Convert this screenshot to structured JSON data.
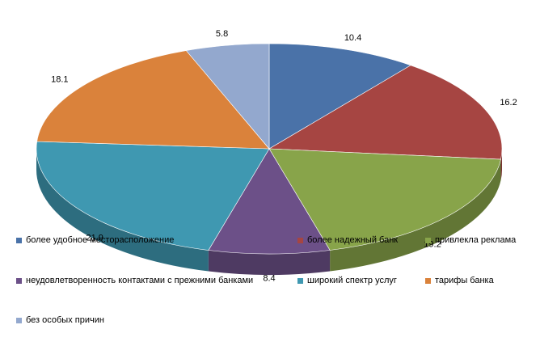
{
  "chart_data": {
    "type": "pie",
    "title": "",
    "series": [
      {
        "label": "более удобное месторасположение",
        "value": 10.4,
        "color": "#4A72A8"
      },
      {
        "label": "более надежный банк",
        "value": 16.2,
        "color": "#A64542"
      },
      {
        "label": "привлекла реклама",
        "value": 19.2,
        "color": "#88A44A"
      },
      {
        "label": "неудовлетворенность контактами с прежними банками",
        "value": 8.4,
        "color": "#6C5088"
      },
      {
        "label": "широкий спектр услуг",
        "value": 21.9,
        "color": "#3F98B1"
      },
      {
        "label": "тарифы банка",
        "value": 18.1,
        "color": "#DA823B"
      },
      {
        "label": "без особых причин",
        "value": 5.8,
        "color": "#93A8CE"
      }
    ],
    "legend_position": "overlay-bottom",
    "data_labels": true,
    "three_d": true
  }
}
